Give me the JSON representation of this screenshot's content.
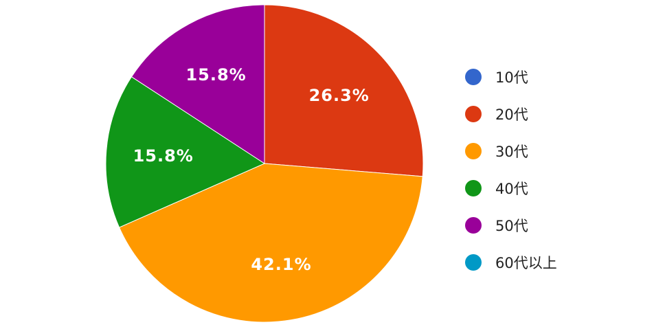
{
  "chart_data": {
    "type": "pie",
    "categories": [
      "10代",
      "20代",
      "30代",
      "40代",
      "50代",
      "60代以上"
    ],
    "values": [
      0,
      26.3,
      42.1,
      15.8,
      15.8,
      0
    ],
    "data_labels": [
      "",
      "26.3%",
      "42.1%",
      "15.8%",
      "15.8%",
      ""
    ],
    "colors": [
      "#3366cc",
      "#dc3912",
      "#ff9900",
      "#109618",
      "#990099",
      "#0099c6"
    ],
    "start": "top",
    "direction": "clockwise",
    "legend_position": "right"
  }
}
